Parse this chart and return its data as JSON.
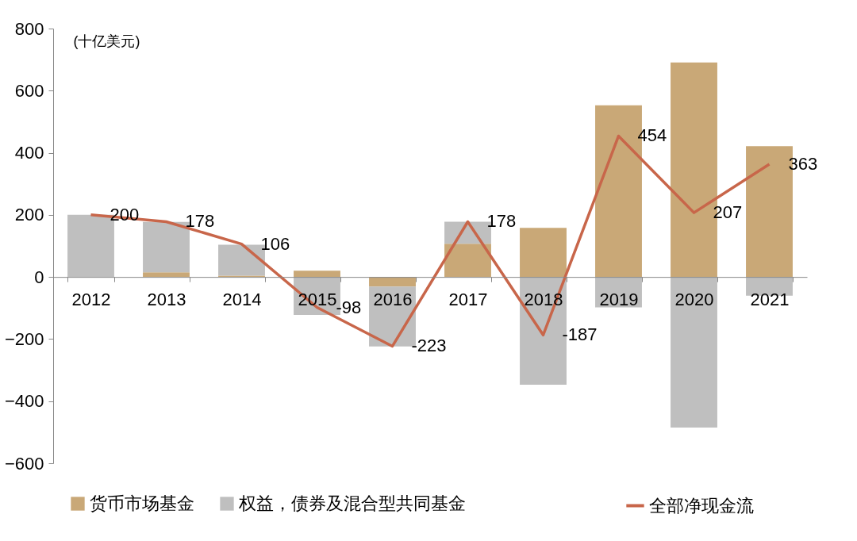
{
  "chart_data": {
    "type": "bar",
    "stacked": true,
    "ylabel": "(十亿美元)",
    "categories": [
      "2012",
      "2013",
      "2014",
      "2015",
      "2016",
      "2017",
      "2018",
      "2019",
      "2020",
      "2021"
    ],
    "series": [
      {
        "name": "货币市场基金",
        "color": "#c9a877",
        "values": [
          0,
          15,
          4,
          20,
          -31,
          107,
          158,
          553,
          691,
          421
        ]
      },
      {
        "name": "权益，债券及混合型共同基金",
        "color": "#bfbfbf",
        "values": [
          200,
          162,
          100,
          -122,
          -193,
          71,
          -347,
          -98,
          -485,
          -60
        ]
      },
      {
        "name": "全部净现金流",
        "type": "line",
        "color": "#c8664a",
        "values": [
          200,
          178,
          106,
          -98,
          -223,
          178,
          -187,
          454,
          207,
          363
        ],
        "value_labels": [
          "200",
          "178",
          "106",
          "-98",
          "-223",
          "178",
          "-187",
          "454",
          "207",
          "363"
        ]
      }
    ],
    "ylim": [
      -600,
      800
    ],
    "yticks": [
      -600,
      -400,
      -200,
      0,
      200,
      400,
      600,
      800
    ],
    "grid": false,
    "legend": "bottom"
  }
}
